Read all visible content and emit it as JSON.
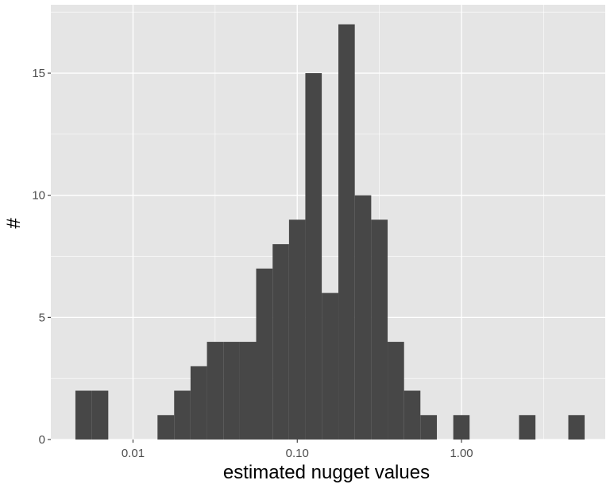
{
  "chart_data": {
    "type": "bar",
    "title": "",
    "xlabel": "estimated nugget values",
    "ylabel": "#",
    "x_scale": "log10",
    "xlim": [
      0.00316,
      7.5
    ],
    "ylim": [
      0,
      17.8
    ],
    "x_ticks": [
      {
        "value": 0.01,
        "label": "0.01"
      },
      {
        "value": 0.1,
        "label": "0.10"
      },
      {
        "value": 1,
        "label": "1.00"
      }
    ],
    "y_ticks": [
      {
        "value": 0,
        "label": "0"
      },
      {
        "value": 5,
        "label": "5"
      },
      {
        "value": 10,
        "label": "10"
      },
      {
        "value": 15,
        "label": "15"
      }
    ],
    "grid": true,
    "bars": [
      {
        "x_min": 0.00446,
        "x_max": 0.00562,
        "count": 2
      },
      {
        "x_min": 0.00562,
        "x_max": 0.00707,
        "count": 2
      },
      {
        "x_min": 0.0141,
        "x_max": 0.0178,
        "count": 1
      },
      {
        "x_min": 0.0178,
        "x_max": 0.0224,
        "count": 2
      },
      {
        "x_min": 0.0224,
        "x_max": 0.0282,
        "count": 3
      },
      {
        "x_min": 0.0282,
        "x_max": 0.0355,
        "count": 4
      },
      {
        "x_min": 0.0355,
        "x_max": 0.0447,
        "count": 4
      },
      {
        "x_min": 0.0447,
        "x_max": 0.0562,
        "count": 4
      },
      {
        "x_min": 0.0562,
        "x_max": 0.0708,
        "count": 7
      },
      {
        "x_min": 0.0708,
        "x_max": 0.0891,
        "count": 8
      },
      {
        "x_min": 0.0891,
        "x_max": 0.112,
        "count": 9
      },
      {
        "x_min": 0.112,
        "x_max": 0.141,
        "count": 15
      },
      {
        "x_min": 0.141,
        "x_max": 0.178,
        "count": 6
      },
      {
        "x_min": 0.178,
        "x_max": 0.224,
        "count": 17
      },
      {
        "x_min": 0.224,
        "x_max": 0.282,
        "count": 10
      },
      {
        "x_min": 0.282,
        "x_max": 0.355,
        "count": 9
      },
      {
        "x_min": 0.355,
        "x_max": 0.447,
        "count": 4
      },
      {
        "x_min": 0.447,
        "x_max": 0.562,
        "count": 2
      },
      {
        "x_min": 0.562,
        "x_max": 0.708,
        "count": 1
      },
      {
        "x_min": 0.891,
        "x_max": 1.12,
        "count": 1
      },
      {
        "x_min": 2.24,
        "x_max": 2.82,
        "count": 1
      },
      {
        "x_min": 4.47,
        "x_max": 5.62,
        "count": 1
      }
    ],
    "colors": {
      "panel_background": "#e5e5e5",
      "grid": "#ffffff",
      "bar_fill": "#474747",
      "tick_label": "#4d4d4d",
      "tick_mark": "#333333",
      "axis_title": "#000000"
    }
  }
}
